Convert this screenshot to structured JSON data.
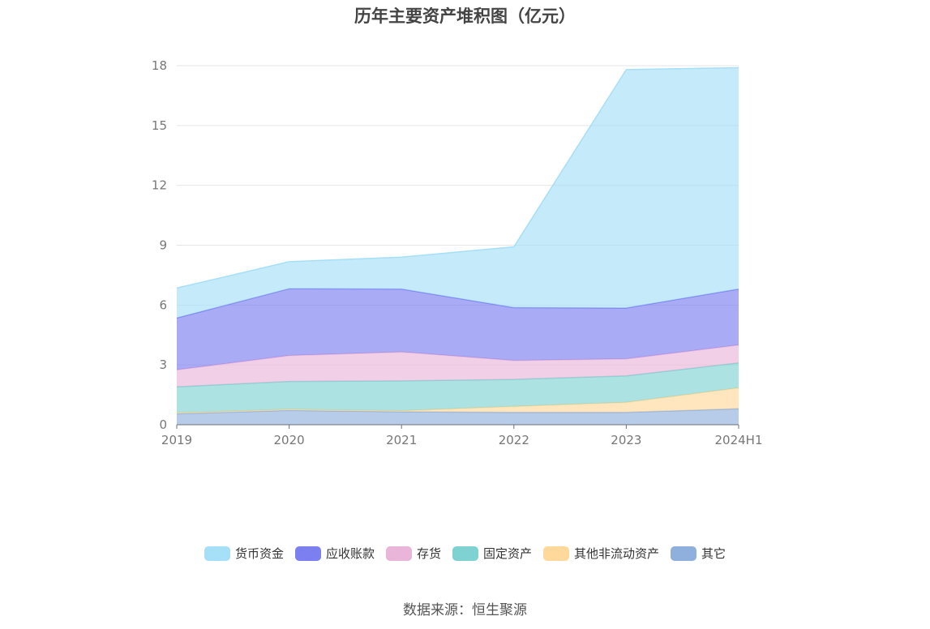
{
  "title": "历年主要资产堆积图（亿元）",
  "source": "数据来源：恒生聚源",
  "chart_data": {
    "type": "area",
    "stacked": true,
    "categories": [
      "2019",
      "2020",
      "2021",
      "2022",
      "2023",
      "2024H1"
    ],
    "ylim": [
      0,
      18
    ],
    "yticks": [
      0,
      3,
      6,
      9,
      12,
      15,
      18
    ],
    "grid": true,
    "legend_position": "bottom",
    "series": [
      {
        "name": "其它",
        "values": [
          0.55,
          0.72,
          0.65,
          0.62,
          0.62,
          0.8
        ],
        "color": "#8fb0dc"
      },
      {
        "name": "其他非流动资产",
        "values": [
          0.05,
          0.05,
          0.05,
          0.3,
          0.5,
          1.05
        ],
        "color": "#ffd99c"
      },
      {
        "name": "固定资产",
        "values": [
          1.3,
          1.4,
          1.5,
          1.35,
          1.33,
          1.25
        ],
        "color": "#7fd2d2"
      },
      {
        "name": "存货",
        "values": [
          0.85,
          1.3,
          1.45,
          0.95,
          0.85,
          0.9
        ],
        "color": "#e9b6d9"
      },
      {
        "name": "应收账款",
        "values": [
          2.6,
          3.35,
          3.15,
          2.65,
          2.55,
          2.8
        ],
        "color": "#7b7ff0"
      },
      {
        "name": "货币资金",
        "values": [
          1.5,
          1.35,
          1.6,
          3.05,
          11.95,
          11.1
        ],
        "color": "#a6dff8"
      }
    ]
  }
}
